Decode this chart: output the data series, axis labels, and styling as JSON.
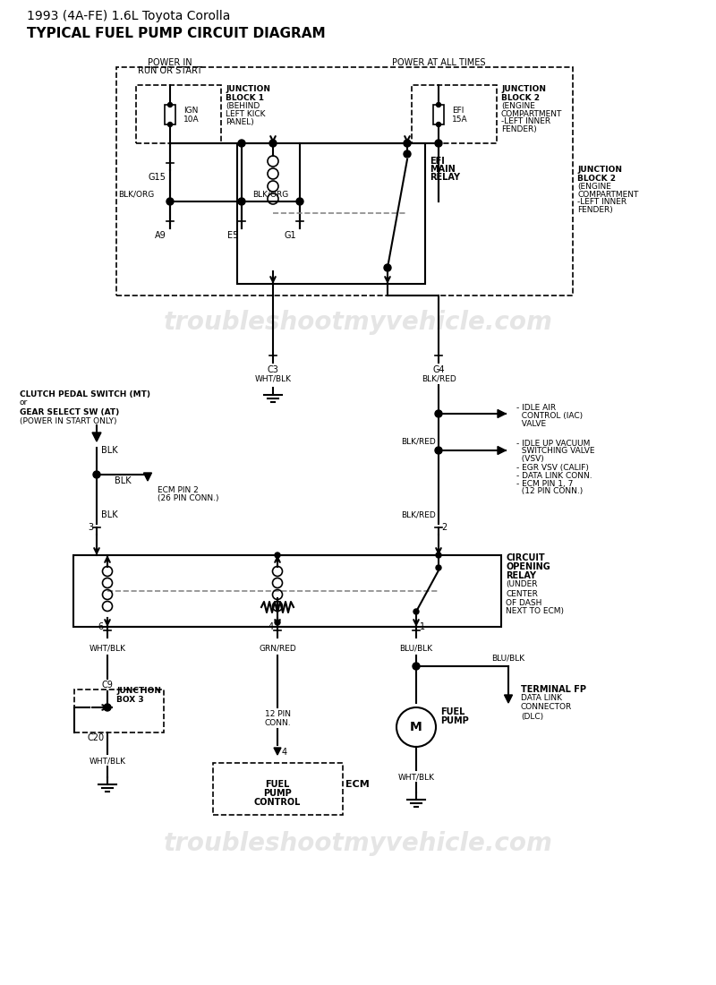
{
  "title_line1": "1993 (4A-FE) 1.6L Toyota Corolla",
  "title_line2": "TYPICAL FUEL PUMP CIRCUIT DIAGRAM",
  "watermark": "troubleshootmyvehicle.com",
  "background_color": "#ffffff",
  "line_color": "#000000",
  "text_color": "#000000",
  "watermark_color": "#cccccc",
  "dashed_color": "#888888"
}
